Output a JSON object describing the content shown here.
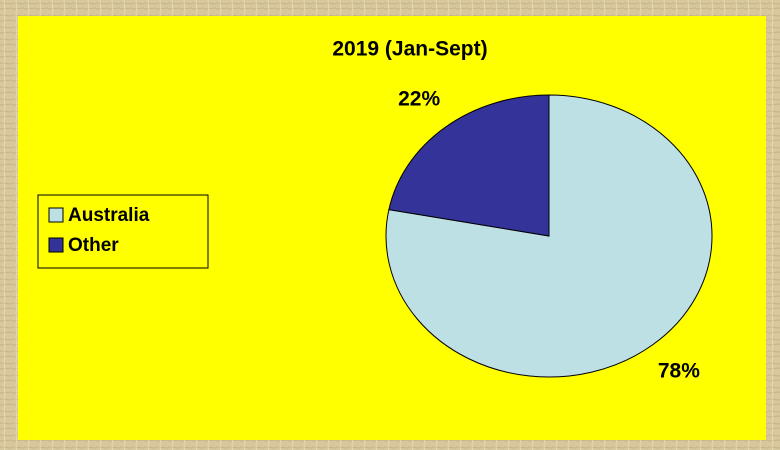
{
  "chart_data": {
    "type": "pie",
    "title": "2019 (Jan-Sept)",
    "categories": [
      "Australia",
      "Other"
    ],
    "values": [
      78,
      22
    ],
    "value_labels": [
      "78%",
      "22%"
    ],
    "colors": [
      "#bde0e4",
      "#333399"
    ],
    "legend": "left"
  }
}
